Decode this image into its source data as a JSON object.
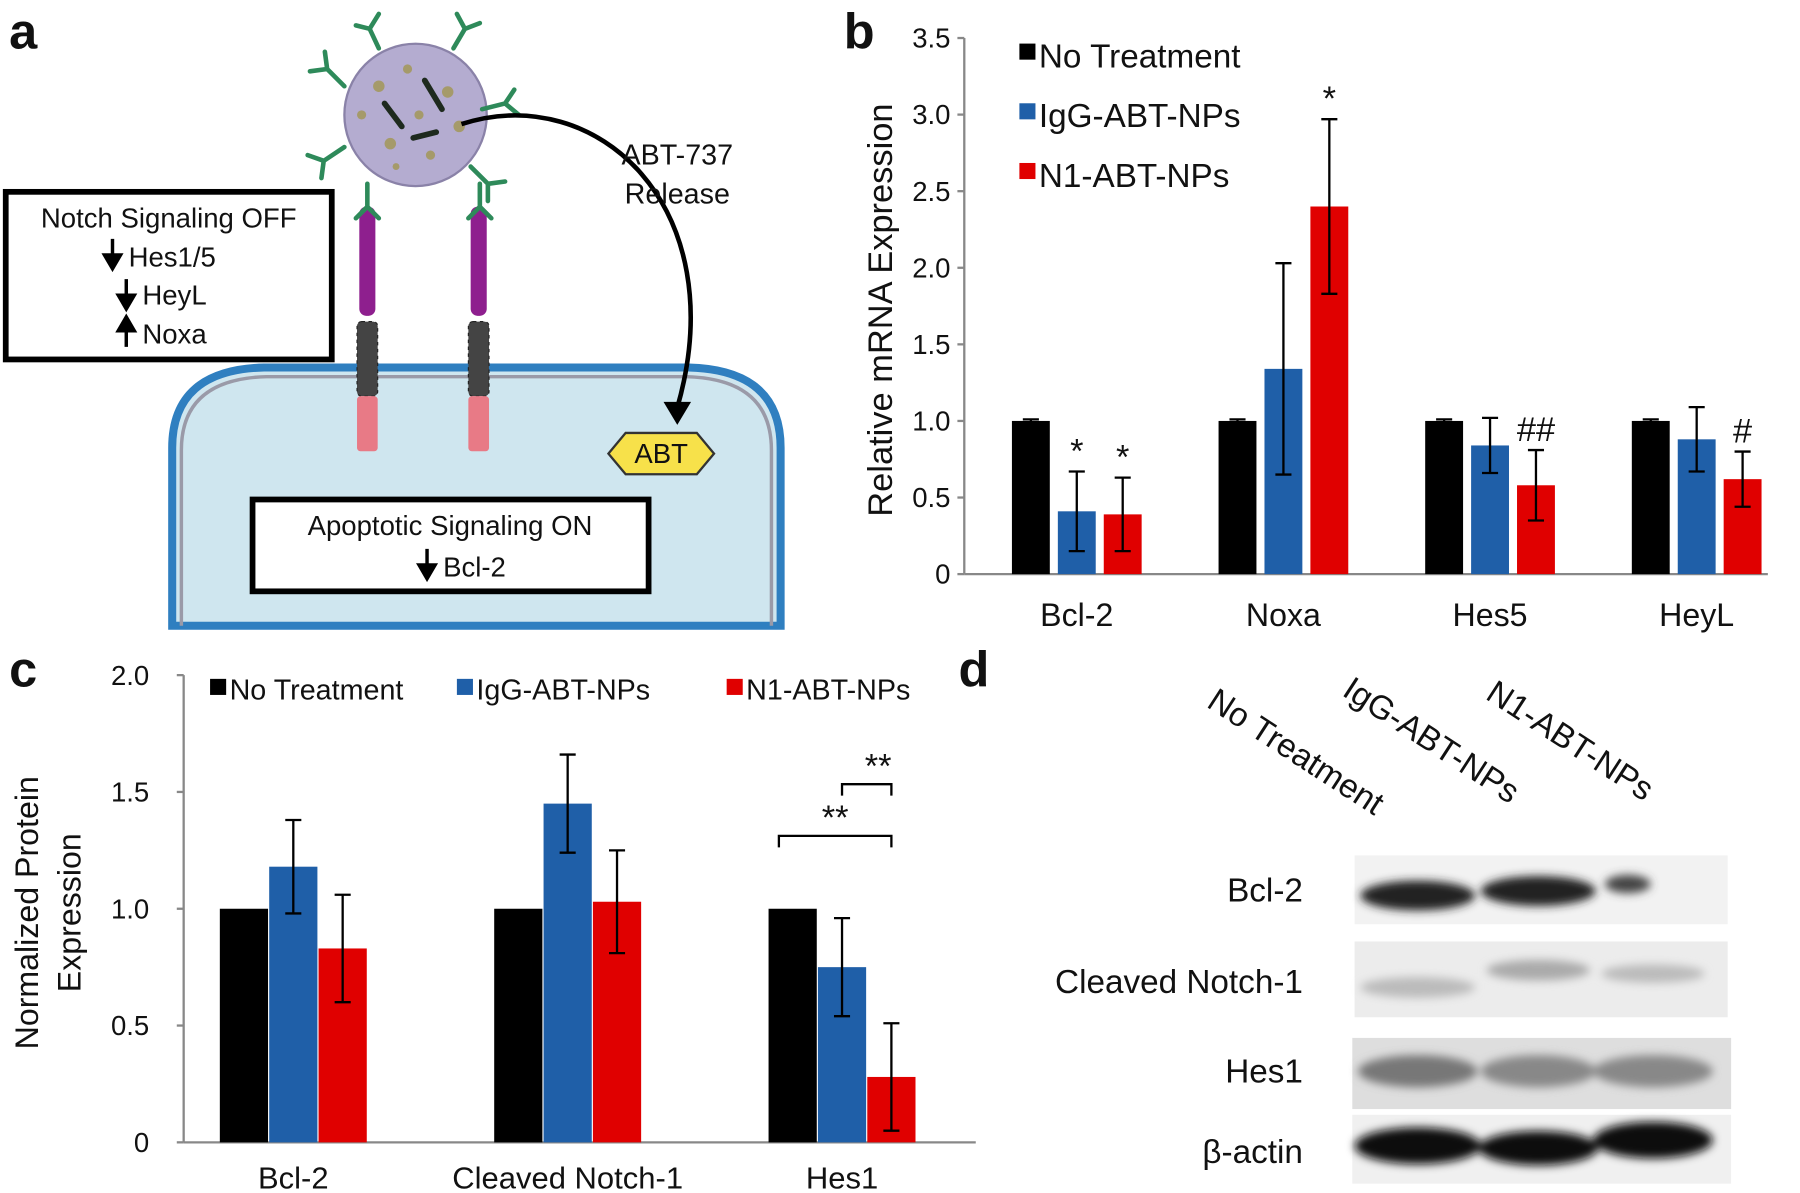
{
  "panel_labels": [
    "a",
    "b",
    "c",
    "d"
  ],
  "diagram": {
    "notch_box": [
      "Notch Signaling OFF",
      "Hes1/5",
      "HeyL",
      "Noxa"
    ],
    "release_label": [
      "ABT-737",
      "Release"
    ],
    "drug": "ABT",
    "apoptosis_box": [
      "Apoptotic Signaling ON",
      "Bcl-2"
    ]
  },
  "chart_data": [
    {
      "type": "bar",
      "y_label": "Relative mRNA Expression",
      "categories": [
        "Bcl-2",
        "Noxa",
        "Hes5",
        "HeyL"
      ],
      "series": [
        {
          "name": "No Treatment",
          "color": "#000000",
          "values": [
            1,
            1,
            1,
            1
          ],
          "errors": [
            0.01,
            0.01,
            0.01,
            0.01
          ]
        },
        {
          "name": "IgG-ABT-NPs",
          "color": "#1f5fa8",
          "values": [
            0.41,
            1.34,
            0.84,
            0.88
          ],
          "errors": [
            0.26,
            0.69,
            0.18,
            0.21
          ],
          "significance": [
            "*",
            null,
            null,
            null
          ]
        },
        {
          "name": "N1-ABT-NPs",
          "color": "#e00000",
          "values": [
            0.39,
            2.4,
            0.58,
            0.62
          ],
          "errors": [
            0.24,
            0.57,
            0.23,
            0.18
          ],
          "significance": [
            "*",
            "*",
            "##",
            "#"
          ]
        }
      ],
      "ylim": [
        0,
        3.5
      ],
      "yticks": [
        0,
        0.5,
        {
          "value": 1,
          "label": "1.0"
        },
        1.5,
        {
          "value": 2,
          "label": "2.0"
        },
        2.5,
        {
          "value": 3,
          "label": "3.0"
        },
        3.5
      ],
      "legend": "top-left"
    },
    {
      "type": "bar",
      "y_label": [
        "Normalized Protein",
        "Expression"
      ],
      "categories": [
        "Bcl-2",
        "Cleaved Notch-1",
        "Hes1"
      ],
      "series": [
        {
          "name": "No Treatment",
          "color": "#000000",
          "values": [
            1,
            1,
            1
          ]
        },
        {
          "name": "IgG-ABT-NPs",
          "color": "#1f5fa8",
          "values": [
            1.18,
            1.45,
            0.75
          ],
          "errors": [
            0.2,
            0.21,
            0.21
          ]
        },
        {
          "name": "N1-ABT-NPs",
          "color": "#e00000",
          "values": [
            0.83,
            1.03,
            0.28
          ],
          "errors": [
            0.23,
            0.22,
            0.23
          ]
        }
      ],
      "ylim": [
        0,
        2
      ],
      "yticks": [
        0,
        0.5,
        {
          "value": 1,
          "label": "1.0"
        },
        1.5,
        {
          "value": 2,
          "label": "2.0"
        }
      ],
      "legend": "top",
      "brackets": [
        {
          "category": "Hes1",
          "from": "IgG-ABT-NPs",
          "to": "N1-ABT-NPs",
          "label": "**"
        },
        {
          "category": "Hes1",
          "from": "No Treatment",
          "to": "N1-ABT-NPs",
          "label": "**"
        }
      ]
    }
  ],
  "blot": {
    "lanes": [
      "No Treatment",
      "IgG-ABT-NPs",
      "N1-ABT-NPs"
    ],
    "rows": [
      "Bcl-2",
      "Cleaved Notch-1",
      "Hes1",
      "β-actin"
    ]
  }
}
